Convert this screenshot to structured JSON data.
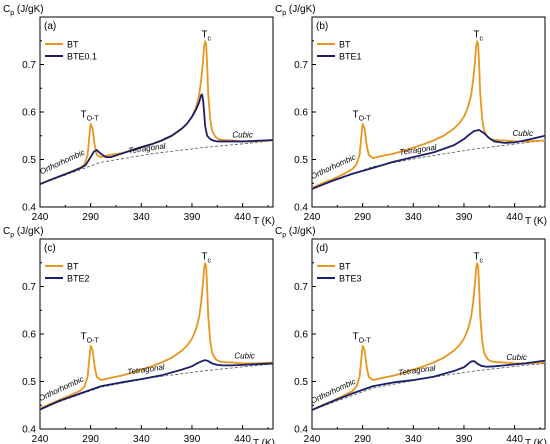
{
  "figure": {
    "colors": {
      "bt": "#e8961e",
      "bte": "#1b1f6b",
      "baseline": "#555555"
    },
    "yaxis_label": {
      "base": "C",
      "sub": "p",
      "unit": " (J/gK)"
    },
    "xaxis_label": "T (K)"
  },
  "chart_data": [
    {
      "type": "line",
      "panel_label": "(a)",
      "xlabel": "T (K)",
      "ylabel": "Cp (J/gK)",
      "xlim": [
        240,
        470
      ],
      "ylim": [
        0.4,
        0.8
      ],
      "xticks": [
        "240",
        "290",
        "340",
        "390",
        "440"
      ],
      "yticks": [
        "0.4",
        "0.5",
        "0.6",
        "0.7"
      ],
      "legend": {
        "placement": "top-left"
      },
      "annotations": [
        {
          "text": "T",
          "sub": "O-T",
          "x": 289,
          "y": 0.588
        },
        {
          "text": "T",
          "sub": "c",
          "x": 404,
          "y": 0.757
        },
        {
          "text": "Orthorhombic",
          "x": 263,
          "y": 0.49,
          "rotate": -25
        },
        {
          "text": "Tetragonal",
          "x": 346,
          "y": 0.518,
          "rotate": -8
        },
        {
          "text": "Cubic",
          "x": 440,
          "y": 0.546,
          "rotate": 0
        }
      ],
      "baseline": {
        "x": [
          240,
          300,
          350,
          400,
          450,
          470
        ],
        "y": [
          0.448,
          0.494,
          0.512,
          0.525,
          0.535,
          0.54
        ]
      },
      "series": [
        {
          "name": "BT",
          "color": "#e8961e",
          "x": [
            240,
            250,
            260,
            270,
            280,
            284,
            287,
            289,
            290,
            292,
            294,
            296,
            300,
            310,
            320,
            330,
            340,
            350,
            360,
            370,
            380,
            385,
            390,
            394,
            397,
            399,
            401,
            402,
            403,
            404,
            405,
            406,
            408,
            410,
            413,
            416,
            420,
            430,
            440,
            450,
            460,
            470
          ],
          "y": [
            0.448,
            0.457,
            0.465,
            0.474,
            0.483,
            0.49,
            0.51,
            0.555,
            0.575,
            0.565,
            0.53,
            0.51,
            0.505,
            0.51,
            0.513,
            0.519,
            0.526,
            0.532,
            0.54,
            0.55,
            0.565,
            0.575,
            0.59,
            0.61,
            0.635,
            0.665,
            0.71,
            0.738,
            0.749,
            0.742,
            0.7,
            0.64,
            0.585,
            0.56,
            0.548,
            0.543,
            0.541,
            0.54,
            0.538,
            0.538,
            0.539,
            0.54
          ]
        },
        {
          "name": "BTE0.1",
          "color": "#1b1f6b",
          "x": [
            240,
            250,
            260,
            270,
            280,
            285,
            290,
            293,
            296,
            300,
            305,
            310,
            320,
            330,
            340,
            350,
            360,
            370,
            380,
            385,
            390,
            394,
            397,
            399,
            400,
            401,
            402,
            403,
            405,
            408,
            411,
            415,
            420,
            430,
            440,
            450,
            460,
            470
          ],
          "y": [
            0.448,
            0.457,
            0.465,
            0.473,
            0.482,
            0.488,
            0.505,
            0.516,
            0.52,
            0.512,
            0.505,
            0.505,
            0.512,
            0.519,
            0.526,
            0.532,
            0.54,
            0.55,
            0.565,
            0.575,
            0.59,
            0.605,
            0.62,
            0.635,
            0.637,
            0.625,
            0.6,
            0.57,
            0.55,
            0.543,
            0.54,
            0.538,
            0.538,
            0.538,
            0.538,
            0.539,
            0.54,
            0.541
          ]
        }
      ]
    },
    {
      "type": "line",
      "panel_label": "(b)",
      "xlabel": "T (K)",
      "ylabel": "Cp (J/gK)",
      "xlim": [
        240,
        470
      ],
      "ylim": [
        0.4,
        0.8
      ],
      "xticks": [
        "240",
        "290",
        "340",
        "390",
        "440"
      ],
      "yticks": [
        "0.4",
        "0.5",
        "0.6",
        "0.7"
      ],
      "legend": {
        "placement": "top-left"
      },
      "annotations": [
        {
          "text": "T",
          "sub": "O-T",
          "x": 289,
          "y": 0.588
        },
        {
          "text": "T",
          "sub": "c",
          "x": 404,
          "y": 0.757
        },
        {
          "text": "Orthorhombic",
          "x": 262,
          "y": 0.48,
          "rotate": -25
        },
        {
          "text": "Tetragonal",
          "x": 345,
          "y": 0.515,
          "rotate": -8
        },
        {
          "text": "Cubic",
          "x": 448,
          "y": 0.55,
          "rotate": 0
        }
      ],
      "baseline": {
        "x": [
          240,
          300,
          350,
          400,
          450,
          470
        ],
        "y": [
          0.44,
          0.485,
          0.505,
          0.522,
          0.535,
          0.54
        ]
      },
      "series": [
        {
          "name": "BT",
          "color": "#e8961e",
          "x": [
            240,
            250,
            260,
            270,
            280,
            284,
            287,
            289,
            290,
            292,
            294,
            296,
            300,
            310,
            320,
            330,
            340,
            350,
            360,
            370,
            380,
            385,
            390,
            394,
            397,
            399,
            401,
            402,
            403,
            404,
            405,
            406,
            408,
            410,
            413,
            416,
            420,
            430,
            440,
            450,
            460,
            470
          ],
          "y": [
            0.44,
            0.45,
            0.458,
            0.468,
            0.48,
            0.49,
            0.51,
            0.555,
            0.575,
            0.565,
            0.53,
            0.51,
            0.503,
            0.508,
            0.512,
            0.518,
            0.525,
            0.532,
            0.54,
            0.55,
            0.565,
            0.575,
            0.59,
            0.61,
            0.635,
            0.665,
            0.71,
            0.738,
            0.749,
            0.742,
            0.7,
            0.64,
            0.585,
            0.56,
            0.548,
            0.543,
            0.541,
            0.54,
            0.538,
            0.538,
            0.539,
            0.54
          ]
        },
        {
          "name": "BTE1",
          "color": "#1b1f6b",
          "x": [
            240,
            260,
            280,
            300,
            320,
            340,
            360,
            380,
            390,
            395,
            400,
            405,
            410,
            415,
            420,
            430,
            440,
            450,
            460,
            470
          ],
          "y": [
            0.438,
            0.455,
            0.47,
            0.482,
            0.495,
            0.505,
            0.515,
            0.53,
            0.543,
            0.552,
            0.56,
            0.562,
            0.555,
            0.545,
            0.538,
            0.535,
            0.536,
            0.54,
            0.545,
            0.55
          ]
        }
      ]
    },
    {
      "type": "line",
      "panel_label": "(c)",
      "xlabel": "T (K)",
      "ylabel": "Cp (J/gK)",
      "xlim": [
        240,
        470
      ],
      "ylim": [
        0.4,
        0.8
      ],
      "xticks": [
        "240",
        "290",
        "340",
        "390",
        "440"
      ],
      "yticks": [
        "0.4",
        "0.5",
        "0.6",
        "0.7"
      ],
      "legend": {
        "placement": "top-left"
      },
      "annotations": [
        {
          "text": "T",
          "sub": "O-T",
          "x": 289,
          "y": 0.588
        },
        {
          "text": "T",
          "sub": "c",
          "x": 404,
          "y": 0.757
        },
        {
          "text": "Orthorhombic",
          "x": 262,
          "y": 0.48,
          "rotate": -25
        },
        {
          "text": "Tetragonal",
          "x": 345,
          "y": 0.52,
          "rotate": -8
        },
        {
          "text": "Cubic",
          "x": 442,
          "y": 0.548,
          "rotate": 0
        }
      ],
      "baseline": {
        "x": [
          240,
          300,
          350,
          400,
          450,
          470
        ],
        "y": [
          0.443,
          0.488,
          0.508,
          0.522,
          0.533,
          0.537
        ]
      },
      "series": [
        {
          "name": "BT",
          "color": "#e8961e",
          "x": [
            240,
            250,
            260,
            270,
            280,
            284,
            287,
            289,
            290,
            292,
            294,
            296,
            300,
            310,
            320,
            330,
            340,
            350,
            360,
            370,
            380,
            385,
            390,
            394,
            397,
            399,
            401,
            402,
            403,
            404,
            405,
            406,
            408,
            410,
            413,
            416,
            420,
            430,
            440,
            450,
            460,
            470
          ],
          "y": [
            0.443,
            0.453,
            0.462,
            0.471,
            0.481,
            0.49,
            0.51,
            0.555,
            0.575,
            0.565,
            0.53,
            0.51,
            0.503,
            0.508,
            0.512,
            0.518,
            0.525,
            0.532,
            0.54,
            0.55,
            0.565,
            0.575,
            0.59,
            0.61,
            0.635,
            0.665,
            0.71,
            0.738,
            0.749,
            0.742,
            0.7,
            0.64,
            0.585,
            0.56,
            0.548,
            0.543,
            0.541,
            0.54,
            0.538,
            0.538,
            0.539,
            0.54
          ]
        },
        {
          "name": "BTE2",
          "color": "#1b1f6b",
          "x": [
            240,
            260,
            280,
            300,
            320,
            340,
            360,
            380,
            390,
            395,
            400,
            403,
            406,
            410,
            415,
            420,
            430,
            440,
            450,
            460,
            470
          ],
          "y": [
            0.441,
            0.46,
            0.475,
            0.49,
            0.498,
            0.505,
            0.513,
            0.525,
            0.532,
            0.538,
            0.543,
            0.545,
            0.543,
            0.538,
            0.535,
            0.534,
            0.534,
            0.535,
            0.536,
            0.537,
            0.538
          ]
        }
      ]
    },
    {
      "type": "line",
      "panel_label": "(d)",
      "xlabel": "T (K)",
      "ylabel": "Cp (J/gK)",
      "xlim": [
        240,
        470
      ],
      "ylim": [
        0.4,
        0.8
      ],
      "xticks": [
        "240",
        "290",
        "340",
        "390",
        "440"
      ],
      "yticks": [
        "0.4",
        "0.5",
        "0.6",
        "0.7"
      ],
      "legend": {
        "placement": "top-left"
      },
      "annotations": [
        {
          "text": "T",
          "sub": "O-T",
          "x": 289,
          "y": 0.588
        },
        {
          "text": "T",
          "sub": "c",
          "x": 404,
          "y": 0.757
        },
        {
          "text": "Orthorhombic",
          "x": 262,
          "y": 0.475,
          "rotate": -25
        },
        {
          "text": "Tetragonal",
          "x": 344,
          "y": 0.518,
          "rotate": -8
        },
        {
          "text": "Cubic",
          "x": 442,
          "y": 0.545,
          "rotate": 0
        }
      ],
      "baseline": {
        "x": [
          240,
          300,
          350,
          400,
          450,
          470
        ],
        "y": [
          0.44,
          0.486,
          0.506,
          0.522,
          0.534,
          0.538
        ]
      },
      "series": [
        {
          "name": "BT",
          "color": "#e8961e",
          "x": [
            240,
            250,
            260,
            270,
            280,
            284,
            287,
            289,
            290,
            292,
            294,
            296,
            300,
            310,
            320,
            330,
            340,
            350,
            360,
            370,
            380,
            385,
            390,
            394,
            397,
            399,
            401,
            402,
            403,
            404,
            405,
            406,
            408,
            410,
            413,
            416,
            420,
            430,
            440,
            450,
            460,
            470
          ],
          "y": [
            0.44,
            0.45,
            0.459,
            0.469,
            0.48,
            0.49,
            0.51,
            0.555,
            0.575,
            0.565,
            0.53,
            0.51,
            0.503,
            0.508,
            0.512,
            0.518,
            0.525,
            0.532,
            0.54,
            0.55,
            0.565,
            0.575,
            0.59,
            0.61,
            0.635,
            0.665,
            0.71,
            0.738,
            0.749,
            0.742,
            0.7,
            0.64,
            0.585,
            0.56,
            0.548,
            0.543,
            0.541,
            0.54,
            0.538,
            0.538,
            0.539,
            0.54
          ]
        },
        {
          "name": "BTE3",
          "color": "#1b1f6b",
          "x": [
            240,
            260,
            280,
            300,
            320,
            340,
            360,
            380,
            390,
            394,
            397,
            400,
            403,
            407,
            412,
            420,
            430,
            440,
            450,
            460,
            470
          ],
          "y": [
            0.44,
            0.458,
            0.475,
            0.49,
            0.498,
            0.503,
            0.51,
            0.522,
            0.53,
            0.537,
            0.542,
            0.543,
            0.538,
            0.533,
            0.531,
            0.532,
            0.534,
            0.536,
            0.538,
            0.541,
            0.544
          ]
        }
      ]
    }
  ]
}
